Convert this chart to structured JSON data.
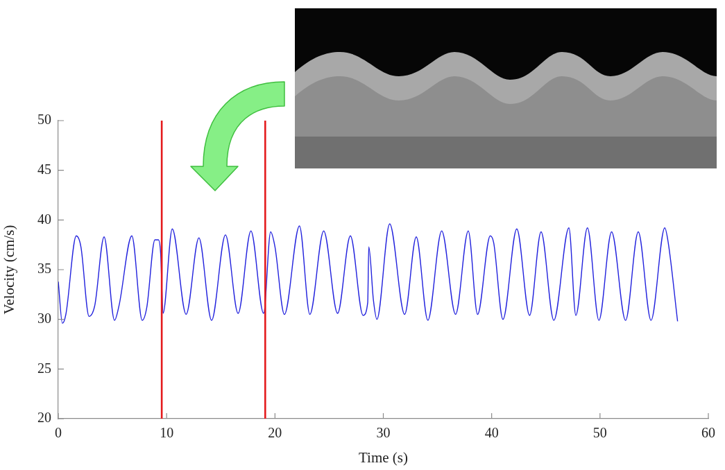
{
  "chart_data": {
    "type": "line",
    "xlabel": "Time (s)",
    "ylabel": "Velocity (cm/s)",
    "x": [
      0,
      0.38,
      0.7,
      1.66,
      2.09,
      2.84,
      3.37,
      4.23,
      5.19,
      5.61,
      6.79,
      7.75,
      8.17,
      8.92,
      9.24,
      9.45,
      9.67,
      10.52,
      11.8,
      12.98,
      14.15,
      15.43,
      16.6,
      17.78,
      18.95,
      19.6,
      20.0,
      20.87,
      22.26,
      23.22,
      24.5,
      25.78,
      26.96,
      28.13,
      28.56,
      28.66,
      29.09,
      29.41,
      30.59,
      31.97,
      33.04,
      34.11,
      35.39,
      36.67,
      37.84,
      38.7,
      39.87,
      40.19,
      41.04,
      42.32,
      43.5,
      44.56,
      45.74,
      47.13,
      47.77,
      48.84,
      49.9,
      51.07,
      52.36,
      53.53,
      54.71,
      55.98,
      56.3,
      57.16
    ],
    "series": [
      {
        "color": "#2222dd",
        "values": [
          33.8,
          29.6,
          30.5,
          38.4,
          37.3,
          30.3,
          31.4,
          38.3,
          29.9,
          31.4,
          38.4,
          29.9,
          31.2,
          38.0,
          38.0,
          36.6,
          30.6,
          39.1,
          30.5,
          38.2,
          29.9,
          38.5,
          30.6,
          38.9,
          30.6,
          38.8,
          37.3,
          30.5,
          39.4,
          30.5,
          38.9,
          30.6,
          38.4,
          30.4,
          31.7,
          37.3,
          31.9,
          30.0,
          39.6,
          30.5,
          38.3,
          29.9,
          38.9,
          30.5,
          38.9,
          30.5,
          38.4,
          37.7,
          30.0,
          39.1,
          30.4,
          38.8,
          29.9,
          39.2,
          30.4,
          39.2,
          29.9,
          38.8,
          29.9,
          38.8,
          29.9,
          39.2,
          37.7,
          29.8
        ]
      }
    ],
    "xlim": [
      0,
      60
    ],
    "xticks": [
      0,
      10,
      20,
      30,
      40,
      50,
      60
    ],
    "ylim": [
      20,
      50
    ],
    "yticks": [
      20,
      25,
      30,
      35,
      40,
      45,
      50
    ],
    "line_style": "solid",
    "ref_lines": [
      {
        "axis": "x",
        "value": 9.55,
        "color": "#e41a1c"
      },
      {
        "axis": "x",
        "value": 19.1,
        "color": "#e41a1c"
      }
    ]
  }
}
